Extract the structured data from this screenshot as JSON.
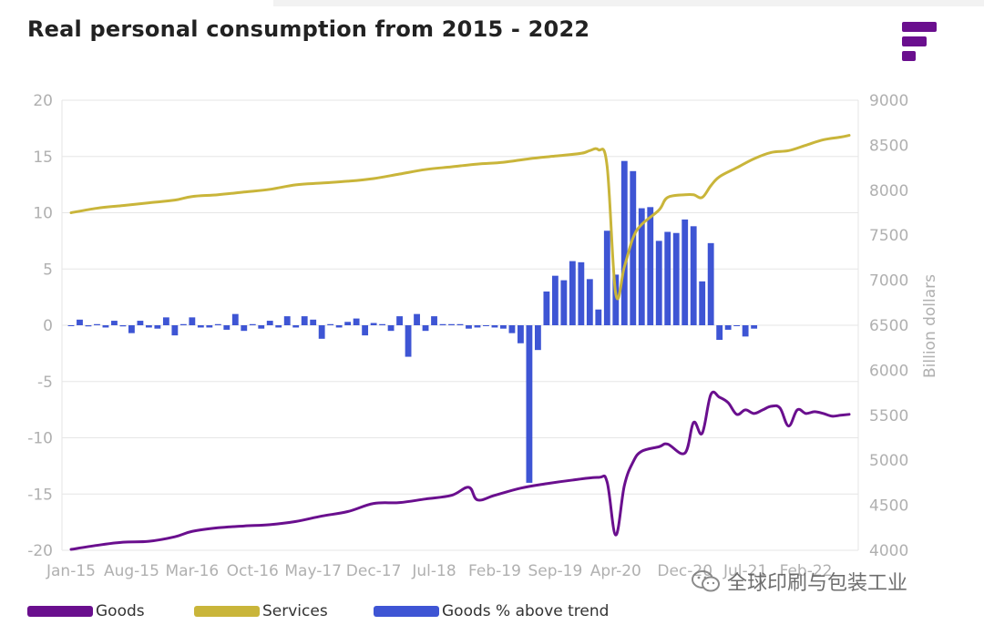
{
  "title": "Real personal consumption from 2015 - 2022",
  "watermark_text": "全球印刷与包装工业",
  "colors": {
    "goods": "#6a0f8e",
    "services": "#c9b53a",
    "trend_bars": "#3e55d4",
    "grid": "#e6e6e6",
    "logo": "#6a0f8e"
  },
  "icons": [
    "brand-logo-icon",
    "wechat-icon"
  ],
  "legend": [
    {
      "label": "Goods",
      "color": "#6a0f8e"
    },
    {
      "label": "Services",
      "color": "#c9b53a"
    },
    {
      "label": "Goods % above trend",
      "color": "#3e55d4"
    }
  ],
  "chart_data": {
    "type": "line",
    "title": "Real personal consumption from 2015 - 2022",
    "x_tick_labels": [
      "Jan-15",
      "Aug-15",
      "Mar-16",
      "Oct-16",
      "May-17",
      "Dec-17",
      "Jul-18",
      "Feb-19",
      "Sep-19",
      "Apr-20",
      "Dec-20",
      "Jul-21",
      "Feb-22"
    ],
    "x_range": [
      "2015-01",
      "2022-07"
    ],
    "left_axis": {
      "ylim": [
        -20,
        20
      ],
      "ticks": [
        -20,
        -15,
        -10,
        -5,
        0,
        5,
        10,
        15,
        20
      ],
      "label": ""
    },
    "right_axis": {
      "ylim": [
        4000,
        9000
      ],
      "ticks": [
        4000,
        4500,
        5000,
        5500,
        6000,
        6500,
        7000,
        7500,
        8000,
        8500,
        9000
      ],
      "label": "Billion dollars"
    },
    "grid": true,
    "legend_position": "bottom",
    "series": [
      {
        "name": "Goods",
        "type": "line",
        "axis": "right",
        "points": [
          [
            "2015-01",
            4010
          ],
          [
            "2015-04",
            4055
          ],
          [
            "2015-07",
            4090
          ],
          [
            "2015-10",
            4100
          ],
          [
            "2016-01",
            4150
          ],
          [
            "2016-03",
            4210
          ],
          [
            "2016-06",
            4250
          ],
          [
            "2016-09",
            4270
          ],
          [
            "2016-12",
            4285
          ],
          [
            "2017-03",
            4320
          ],
          [
            "2017-06",
            4380
          ],
          [
            "2017-09",
            4430
          ],
          [
            "2017-12",
            4520
          ],
          [
            "2018-03",
            4530
          ],
          [
            "2018-06",
            4570
          ],
          [
            "2018-09",
            4610
          ],
          [
            "2018-11",
            4700
          ],
          [
            "2018-12",
            4560
          ],
          [
            "2019-02",
            4610
          ],
          [
            "2019-05",
            4690
          ],
          [
            "2019-08",
            4740
          ],
          [
            "2019-11",
            4780
          ],
          [
            "2020-02",
            4810
          ],
          [
            "2020-03",
            4760
          ],
          [
            "2020-04",
            4170
          ],
          [
            "2020-05",
            4720
          ],
          [
            "2020-06",
            4980
          ],
          [
            "2020-07",
            5100
          ],
          [
            "2020-09",
            5150
          ],
          [
            "2020-10",
            5180
          ],
          [
            "2020-12",
            5080
          ],
          [
            "2021-01",
            5420
          ],
          [
            "2021-02",
            5300
          ],
          [
            "2021-03",
            5730
          ],
          [
            "2021-04",
            5700
          ],
          [
            "2021-05",
            5640
          ],
          [
            "2021-06",
            5510
          ],
          [
            "2021-07",
            5560
          ],
          [
            "2021-08",
            5520
          ],
          [
            "2021-09",
            5560
          ],
          [
            "2021-10",
            5600
          ],
          [
            "2021-11",
            5580
          ],
          [
            "2021-12",
            5380
          ],
          [
            "2022-01",
            5560
          ],
          [
            "2022-02",
            5520
          ],
          [
            "2022-03",
            5540
          ],
          [
            "2022-04",
            5520
          ],
          [
            "2022-05",
            5490
          ],
          [
            "2022-06",
            5500
          ],
          [
            "2022-07",
            5510
          ]
        ]
      },
      {
        "name": "Services",
        "type": "line",
        "axis": "right",
        "points": [
          [
            "2015-01",
            7750
          ],
          [
            "2015-04",
            7800
          ],
          [
            "2015-07",
            7830
          ],
          [
            "2015-10",
            7860
          ],
          [
            "2016-01",
            7890
          ],
          [
            "2016-03",
            7930
          ],
          [
            "2016-06",
            7950
          ],
          [
            "2016-09",
            7980
          ],
          [
            "2016-12",
            8010
          ],
          [
            "2017-03",
            8060
          ],
          [
            "2017-06",
            8080
          ],
          [
            "2017-09",
            8100
          ],
          [
            "2017-12",
            8130
          ],
          [
            "2018-03",
            8180
          ],
          [
            "2018-06",
            8230
          ],
          [
            "2018-09",
            8260
          ],
          [
            "2018-12",
            8290
          ],
          [
            "2019-03",
            8310
          ],
          [
            "2019-06",
            8350
          ],
          [
            "2019-09",
            8380
          ],
          [
            "2019-12",
            8410
          ],
          [
            "2020-01",
            8440
          ],
          [
            "2020-02",
            8450
          ],
          [
            "2020-03",
            8270
          ],
          [
            "2020-04",
            6850
          ],
          [
            "2020-05",
            7150
          ],
          [
            "2020-06",
            7470
          ],
          [
            "2020-07",
            7620
          ],
          [
            "2020-09",
            7780
          ],
          [
            "2020-10",
            7920
          ],
          [
            "2020-12",
            7950
          ],
          [
            "2021-01",
            7950
          ],
          [
            "2021-02",
            7920
          ],
          [
            "2021-03",
            8050
          ],
          [
            "2021-04",
            8150
          ],
          [
            "2021-06",
            8250
          ],
          [
            "2021-08",
            8350
          ],
          [
            "2021-10",
            8420
          ],
          [
            "2021-12",
            8440
          ],
          [
            "2022-02",
            8500
          ],
          [
            "2022-04",
            8560
          ],
          [
            "2022-06",
            8590
          ],
          [
            "2022-07",
            8610
          ]
        ]
      },
      {
        "name": "Goods % above trend",
        "type": "bar",
        "axis": "left",
        "values": [
          0.0,
          0.5,
          -0.1,
          0.1,
          -0.2,
          0.4,
          -0.1,
          -0.7,
          0.4,
          -0.2,
          -0.3,
          0.7,
          -0.9,
          0.1,
          0.7,
          -0.2,
          -0.2,
          0.1,
          -0.4,
          1.0,
          -0.5,
          0.1,
          -0.3,
          0.4,
          -0.2,
          0.8,
          -0.2,
          0.8,
          0.5,
          -1.2,
          0.1,
          -0.2,
          0.3,
          0.6,
          -0.9,
          0.2,
          0.1,
          -0.5,
          0.8,
          -2.8,
          1.0,
          -0.5,
          0.8,
          0.1,
          0.1,
          0.1,
          -0.3,
          -0.2,
          0.0,
          -0.2,
          -0.3,
          -0.7,
          -1.6,
          -14.0,
          -2.2,
          3.0,
          4.4,
          4.0,
          5.7,
          5.6,
          4.1,
          1.4,
          8.4,
          4.5,
          14.6,
          13.7,
          10.4,
          10.5,
          7.5,
          8.3,
          8.2,
          9.4,
          8.8,
          3.9,
          7.3,
          -1.3,
          -0.4,
          0.0,
          -1.0,
          -0.3
        ]
      }
    ]
  }
}
